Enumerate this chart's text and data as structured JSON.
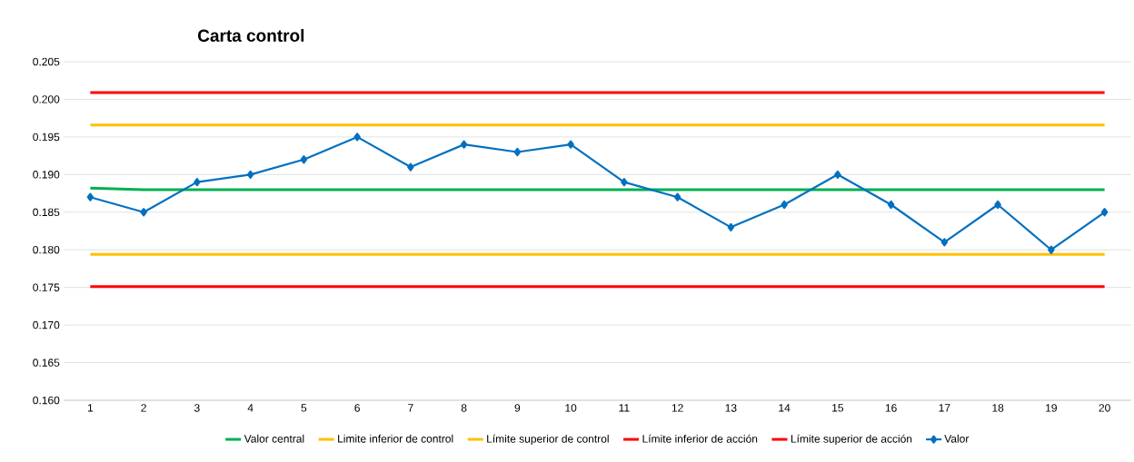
{
  "chart_data": {
    "type": "line",
    "title": "Carta control",
    "categories": [
      "1",
      "2",
      "3",
      "4",
      "5",
      "6",
      "7",
      "8",
      "9",
      "10",
      "11",
      "12",
      "13",
      "14",
      "15",
      "16",
      "17",
      "18",
      "19",
      "20"
    ],
    "ylim": [
      0.16,
      0.205
    ],
    "yticks": [
      {
        "value": 0.16,
        "label": "0.160"
      },
      {
        "value": 0.165,
        "label": "0.165"
      },
      {
        "value": 0.17,
        "label": "0.170"
      },
      {
        "value": 0.175,
        "label": "0.175"
      },
      {
        "value": 0.18,
        "label": "0.180"
      },
      {
        "value": 0.185,
        "label": "0.185"
      },
      {
        "value": 0.19,
        "label": "0.190"
      },
      {
        "value": 0.195,
        "label": "0.195"
      },
      {
        "value": 0.2,
        "label": "0.200"
      },
      {
        "value": 0.205,
        "label": "0.205"
      }
    ],
    "grid": "y",
    "legend": "bottom",
    "series": [
      {
        "name": "Valor central",
        "color": "#00b050",
        "marker": "none",
        "values": [
          0.1882,
          0.188,
          0.188,
          0.188,
          0.188,
          0.188,
          0.188,
          0.188,
          0.188,
          0.188,
          0.188,
          0.188,
          0.188,
          0.188,
          0.188,
          0.188,
          0.188,
          0.188,
          0.188,
          0.188
        ]
      },
      {
        "name": "Limite inferior de control",
        "color": "#ffc000",
        "marker": "none",
        "values": [
          0.1794,
          0.1794,
          0.1794,
          0.1794,
          0.1794,
          0.1794,
          0.1794,
          0.1794,
          0.1794,
          0.1794,
          0.1794,
          0.1794,
          0.1794,
          0.1794,
          0.1794,
          0.1794,
          0.1794,
          0.1794,
          0.1794,
          0.1794
        ]
      },
      {
        "name": "Límite superior de control",
        "color": "#ffc000",
        "marker": "none",
        "values": [
          0.1966,
          0.1966,
          0.1966,
          0.1966,
          0.1966,
          0.1966,
          0.1966,
          0.1966,
          0.1966,
          0.1966,
          0.1966,
          0.1966,
          0.1966,
          0.1966,
          0.1966,
          0.1966,
          0.1966,
          0.1966,
          0.1966,
          0.1966
        ]
      },
      {
        "name": "Límite inferior de acción",
        "color": "#ff0000",
        "marker": "none",
        "values": [
          0.1751,
          0.1751,
          0.1751,
          0.1751,
          0.1751,
          0.1751,
          0.1751,
          0.1751,
          0.1751,
          0.1751,
          0.1751,
          0.1751,
          0.1751,
          0.1751,
          0.1751,
          0.1751,
          0.1751,
          0.1751,
          0.1751,
          0.1751
        ]
      },
      {
        "name": "Límite superior de acción",
        "color": "#ff0000",
        "marker": "none",
        "values": [
          0.2009,
          0.2009,
          0.2009,
          0.2009,
          0.2009,
          0.2009,
          0.2009,
          0.2009,
          0.2009,
          0.2009,
          0.2009,
          0.2009,
          0.2009,
          0.2009,
          0.2009,
          0.2009,
          0.2009,
          0.2009,
          0.2009,
          0.2009
        ]
      },
      {
        "name": "Valor",
        "color": "#0070c0",
        "marker": "diamond",
        "values": [
          0.187,
          0.185,
          0.189,
          0.19,
          0.192,
          0.195,
          0.191,
          0.194,
          0.193,
          0.194,
          0.189,
          0.187,
          0.183,
          0.186,
          0.19,
          0.186,
          0.181,
          0.186,
          0.18,
          0.185
        ]
      }
    ]
  }
}
